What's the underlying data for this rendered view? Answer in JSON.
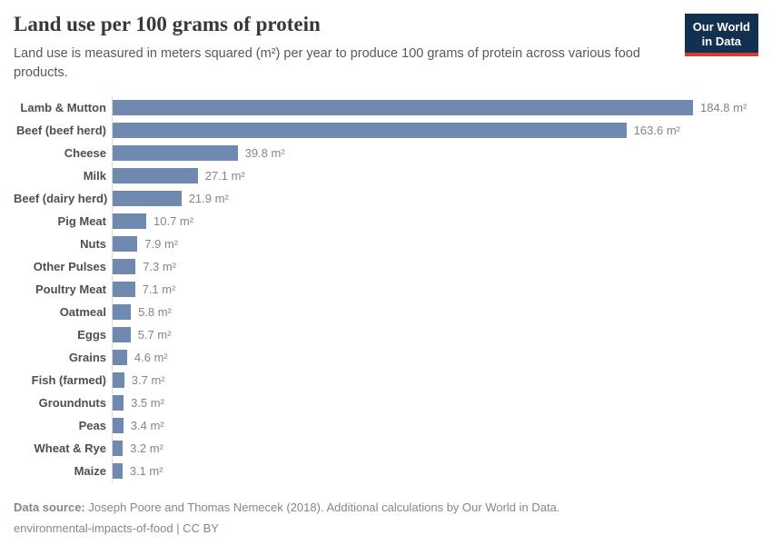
{
  "header": {
    "title": "Land use per 100 grams of protein",
    "subtitle": "Land use is measured in meters squared (m²) per year to produce 100 grams of protein across various food products.",
    "logo": {
      "line1": "Our World",
      "line2": "in Data"
    }
  },
  "chart_data": {
    "type": "bar",
    "orientation": "horizontal",
    "title": "Land use per 100 grams of protein",
    "categories": [
      "Lamb & Mutton",
      "Beef (beef herd)",
      "Cheese",
      "Milk",
      "Beef (dairy herd)",
      "Pig Meat",
      "Nuts",
      "Other Pulses",
      "Poultry Meat",
      "Oatmeal",
      "Eggs",
      "Grains",
      "Fish (farmed)",
      "Groundnuts",
      "Peas",
      "Wheat & Rye",
      "Maize"
    ],
    "values": [
      184.8,
      163.6,
      39.8,
      27.1,
      21.9,
      10.7,
      7.9,
      7.3,
      7.1,
      5.8,
      5.7,
      4.6,
      3.7,
      3.5,
      3.4,
      3.2,
      3.1
    ],
    "unit": "m²",
    "xlabel": "",
    "ylabel": "",
    "xlim": [
      0,
      184.8
    ],
    "grid": false,
    "legend": "none",
    "bar_color": "#7089b1"
  },
  "footer": {
    "source_label": "Data source:",
    "source_text": "Joseph Poore and Thomas Nemecek (2018). Additional calculations by Our World in Data.",
    "note": "environmental-impacts-of-food | CC BY"
  }
}
